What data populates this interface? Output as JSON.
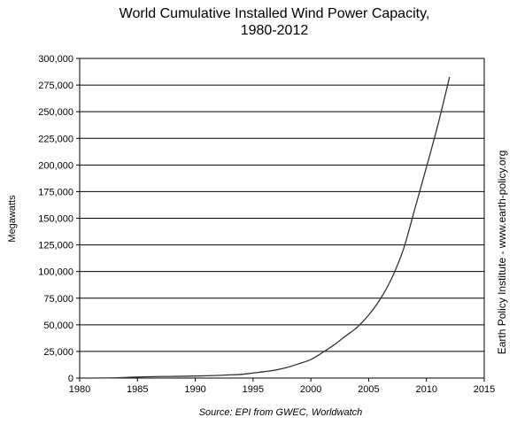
{
  "chart_data": {
    "type": "line",
    "title": "World Cumulative Installed Wind Power Capacity,",
    "subtitle": "1980-2012",
    "xlabel": "",
    "ylabel": "Megawatts",
    "xlim": [
      1980,
      2015
    ],
    "ylim": [
      0,
      300000
    ],
    "x_ticks": [
      1980,
      1985,
      1990,
      1995,
      2000,
      2005,
      2010,
      2015
    ],
    "y_ticks": [
      0,
      25000,
      50000,
      75000,
      100000,
      125000,
      150000,
      175000,
      200000,
      225000,
      250000,
      275000,
      300000
    ],
    "x_tick_labels": [
      "1980",
      "1985",
      "1990",
      "1995",
      "2000",
      "2005",
      "2010",
      "2015"
    ],
    "y_tick_labels": [
      "0",
      "25,000",
      "50,000",
      "75,000",
      "100,000",
      "125,000",
      "150,000",
      "175,000",
      "200,000",
      "225,000",
      "250,000",
      "275,000",
      "300,000"
    ],
    "grid": "horizontal",
    "legend": "none",
    "series": [
      {
        "x": [
          1980,
          1981,
          1982,
          1983,
          1984,
          1985,
          1986,
          1987,
          1988,
          1989,
          1990,
          1991,
          1992,
          1993,
          1994,
          1995,
          1996,
          1997,
          1998,
          1999,
          2000,
          2001,
          2002,
          2003,
          2004,
          2005,
          2006,
          2007,
          2008,
          2009,
          2010,
          2011,
          2012
        ],
        "values": [
          10,
          25,
          90,
          210,
          600,
          1020,
          1270,
          1450,
          1580,
          1730,
          1930,
          2170,
          2510,
          2990,
          3490,
          4780,
          6070,
          7640,
          10150,
          13600,
          17400,
          23900,
          31100,
          39430,
          47620,
          59090,
          74050,
          93820,
          120620,
          158980,
          197940,
          238040,
          282590
        ],
        "color": "#333333"
      }
    ],
    "source": "Source: EPI from GWEC, Worldwatch",
    "side_note": "Earth Policy Institute - www.earth-policy.org"
  }
}
